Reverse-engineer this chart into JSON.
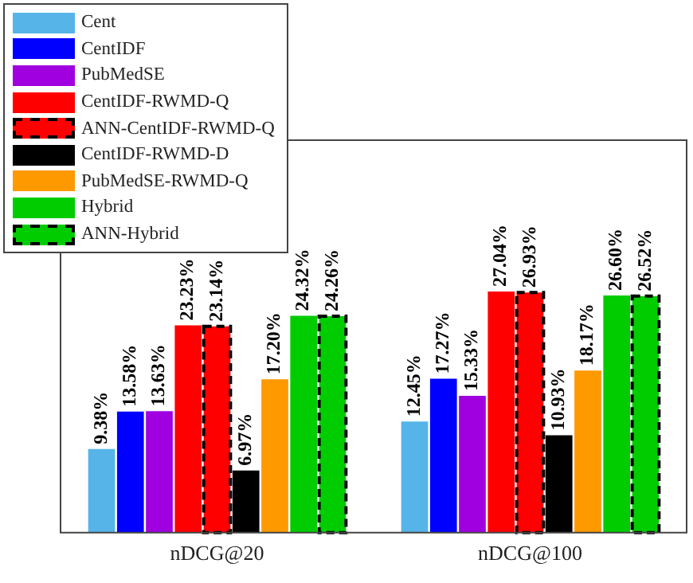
{
  "chart_data": {
    "type": "bar",
    "categories": [
      "nDCG@20",
      "nDCG@100"
    ],
    "series": [
      {
        "name": "Cent",
        "color": "#56b4e9",
        "values": [
          9.38,
          12.45
        ],
        "value_labels": [
          "9.38%",
          "12.45%"
        ]
      },
      {
        "name": "CentIDF",
        "color": "#0000ff",
        "values": [
          13.58,
          17.27
        ],
        "value_labels": [
          "13.58%",
          "17.27%"
        ]
      },
      {
        "name": "PubMedSE",
        "color": "#a000e0",
        "values": [
          13.63,
          15.33
        ],
        "value_labels": [
          "13.63%",
          "15.33%"
        ]
      },
      {
        "name": "CentIDF-RWMD-Q",
        "color": "#ff0000",
        "values": [
          23.23,
          27.04
        ],
        "value_labels": [
          "23.23%",
          "27.04%"
        ]
      },
      {
        "name": "ANN-CentIDF-RWMD-Q",
        "color": "#ff0000",
        "line_style": "dashed",
        "values": [
          23.14,
          26.93
        ],
        "value_labels": [
          "23.14%",
          "26.93%"
        ]
      },
      {
        "name": "CentIDF-RWMD-D",
        "color": "#000000",
        "values": [
          6.97,
          10.93
        ],
        "value_labels": [
          "6.97%",
          "10.93%"
        ]
      },
      {
        "name": "PubMedSE-RWMD-Q",
        "color": "#ff9900",
        "values": [
          17.2,
          18.17
        ],
        "value_labels": [
          "17.20%",
          "18.17%"
        ]
      },
      {
        "name": "Hybrid",
        "color": "#00cc00",
        "values": [
          24.32,
          26.6
        ],
        "value_labels": [
          "24.32%",
          "26.60%"
        ]
      },
      {
        "name": "ANN-Hybrid",
        "color": "#00cc00",
        "line_style": "dashed",
        "values": [
          24.26,
          26.52
        ],
        "value_labels": [
          "24.26%",
          "26.52%"
        ]
      }
    ],
    "ylim": [
      0,
      44
    ],
    "tick_labels": "x",
    "grid": false,
    "legend": "top left"
  }
}
